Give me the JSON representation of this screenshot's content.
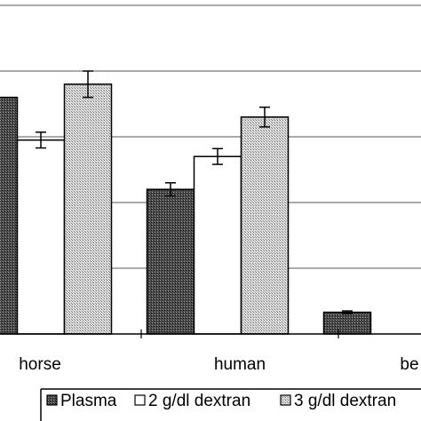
{
  "chart_data": {
    "type": "bar",
    "title": "",
    "xlabel": "",
    "ylabel": "",
    "categories": [
      "horse",
      "human",
      "be"
    ],
    "series": [
      {
        "name": "Plasma",
        "pattern": "dark-hatch",
        "values": [
          3.6,
          2.2,
          0.33
        ],
        "errors": [
          0.12,
          0.1,
          0.02
        ]
      },
      {
        "name": "2 g/dl dextran",
        "pattern": "white",
        "values": [
          2.95,
          2.7,
          null
        ],
        "errors": [
          0.12,
          0.12,
          null
        ]
      },
      {
        "name": "3 g/dl dextran",
        "pattern": "light-dots",
        "values": [
          3.8,
          3.3,
          null
        ],
        "errors": [
          0.2,
          0.15,
          null
        ]
      }
    ],
    "ylim": [
      0,
      5
    ],
    "grid": true,
    "legend_position": "bottom"
  }
}
